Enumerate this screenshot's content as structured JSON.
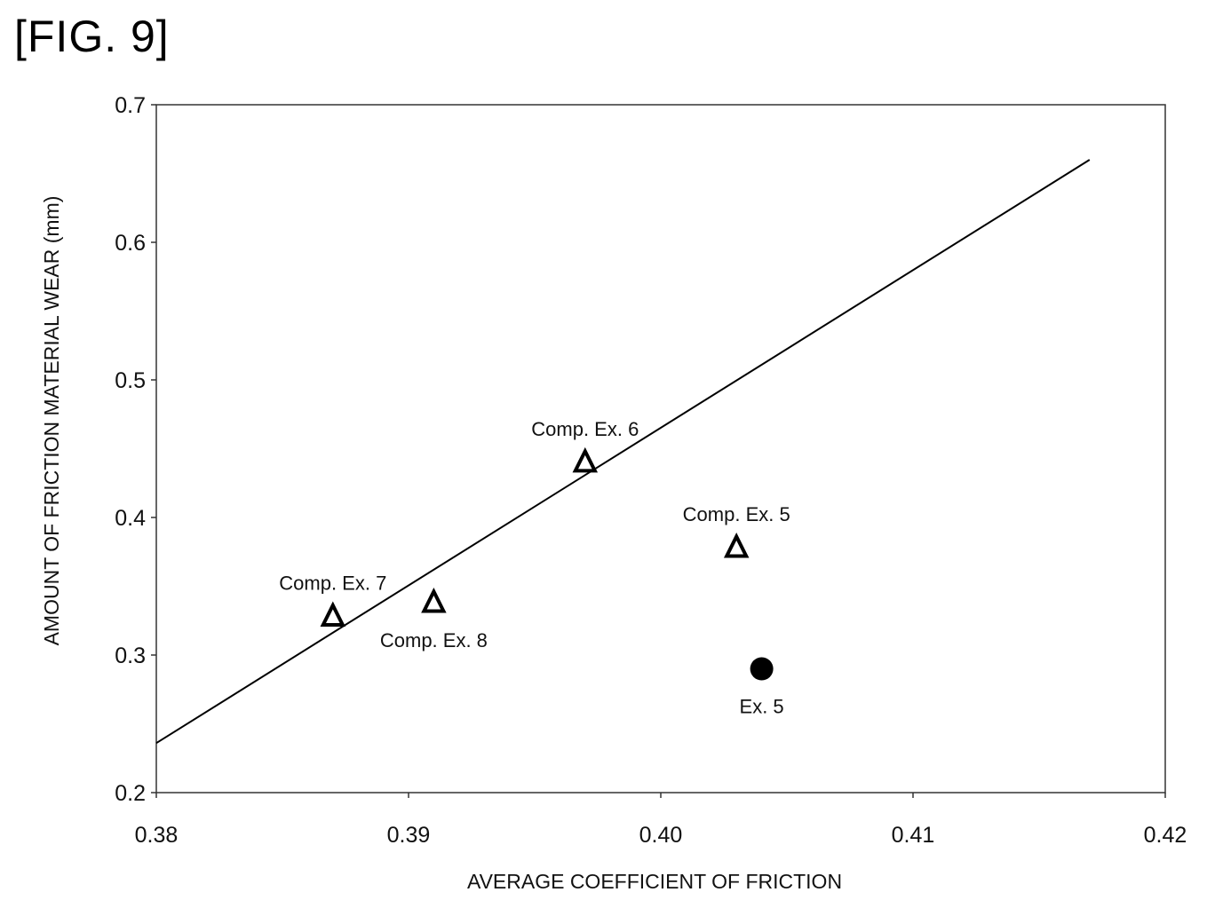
{
  "figure_label": "[FIG. 9]",
  "chart_data": {
    "type": "scatter",
    "xlabel": "AVERAGE COEFFICIENT OF FRICTION",
    "ylabel": "AMOUNT OF FRICTION MATERIAL WEAR (mm)",
    "xlim": [
      0.38,
      0.42
    ],
    "ylim": [
      0.2,
      0.7
    ],
    "x_ticks": [
      "0.38",
      "0.39",
      "0.40",
      "0.41",
      "0.42"
    ],
    "y_ticks": [
      "0.2",
      "0.3",
      "0.4",
      "0.5",
      "0.6",
      "0.7"
    ],
    "grid": false,
    "points": [
      {
        "label": "Comp. Ex. 7",
        "x": 0.387,
        "y": 0.328,
        "marker": "triangle-open",
        "label_pos": "above"
      },
      {
        "label": "Comp. Ex. 8",
        "x": 0.391,
        "y": 0.338,
        "marker": "triangle-open",
        "label_pos": "below"
      },
      {
        "label": "Comp. Ex. 6",
        "x": 0.397,
        "y": 0.44,
        "marker": "triangle-open",
        "label_pos": "above"
      },
      {
        "label": "Comp. Ex. 5",
        "x": 0.403,
        "y": 0.378,
        "marker": "triangle-open",
        "label_pos": "above"
      },
      {
        "label": "Ex. 5",
        "x": 0.404,
        "y": 0.29,
        "marker": "circle-filled",
        "label_pos": "below"
      }
    ],
    "trendline": {
      "x": [
        0.38,
        0.417
      ],
      "y": [
        0.236,
        0.66
      ]
    }
  }
}
